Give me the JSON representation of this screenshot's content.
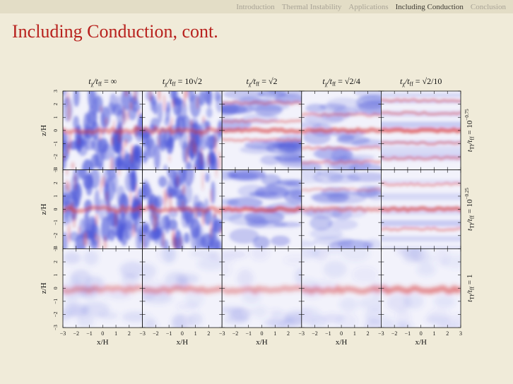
{
  "nav": {
    "items": [
      "Introduction",
      "Thermal Instability",
      "Applications",
      "Including Conduction",
      "Conclusion"
    ],
    "active_index": 3
  },
  "slide": {
    "title": "Including Conduction, cont."
  },
  "figure": {
    "column_titles": [
      {
        "lhs": "t",
        "lhs_sub": "χ",
        "rhs": "/t",
        "rhs_sub": "ff",
        "eq": " = ∞"
      },
      {
        "lhs": "t",
        "lhs_sub": "χ",
        "rhs": "/t",
        "rhs_sub": "ff",
        "eq": " = 10√2"
      },
      {
        "lhs": "t",
        "lhs_sub": "χ",
        "rhs": "/t",
        "rhs_sub": "ff",
        "eq": " = √2"
      },
      {
        "lhs": "t",
        "lhs_sub": "χ",
        "rhs": "/t",
        "rhs_sub": "ff",
        "eq": " = √2/4"
      },
      {
        "lhs": "t",
        "lhs_sub": "χ",
        "rhs": "/t",
        "rhs_sub": "ff",
        "eq": " = √2/10"
      }
    ],
    "row_titles": [
      {
        "lhs": "t",
        "lhs_sub": "TI",
        "rhs": "/t",
        "rhs_sub": "ff",
        "eq": " = 10",
        "sup": "−0.75"
      },
      {
        "lhs": "t",
        "lhs_sub": "TI",
        "rhs": "/t",
        "rhs_sub": "ff",
        "eq": " = 10",
        "sup": "−0.25"
      },
      {
        "lhs": "t",
        "lhs_sub": "TI",
        "rhs": "/t",
        "rhs_sub": "ff",
        "eq": " = 1",
        "sup": ""
      }
    ],
    "y_axis_label": "z/H",
    "x_axis_label": "x/H",
    "x_ticks": [
      "−3",
      "−2",
      "−1",
      "0",
      "1",
      "2"
    ],
    "x_ticks_last": "3",
    "y_ticks": [
      "3",
      "2",
      "1",
      "0",
      "−1",
      "−2",
      "−3"
    ],
    "colors": {
      "cold_red": "#d83a3a",
      "hot_blue": "#4a55d8",
      "mid": "#f2f2fb"
    },
    "panels": [
      [
        {
          "blue": 0.85,
          "red": 0.55,
          "style": "turbulent",
          "bands": [
            0.5
          ]
        },
        {
          "blue": 0.8,
          "red": 0.55,
          "style": "turbulent",
          "bands": [
            0.5
          ]
        },
        {
          "blue": 0.6,
          "red": 0.7,
          "style": "layered",
          "bands": [
            0.5,
            0.38,
            0.62,
            0.15
          ]
        },
        {
          "blue": 0.5,
          "red": 0.7,
          "style": "layered",
          "bands": [
            0.5,
            0.3,
            0.72,
            0.9
          ]
        },
        {
          "blue": 0.45,
          "red": 0.8,
          "style": "striped",
          "bands": [
            0.5,
            0.28,
            0.66,
            0.12,
            0.85
          ]
        }
      ],
      [
        {
          "blue": 0.8,
          "red": 0.55,
          "style": "turbulent",
          "bands": [
            0.5
          ]
        },
        {
          "blue": 0.75,
          "red": 0.55,
          "style": "turbulent",
          "bands": [
            0.5
          ]
        },
        {
          "blue": 0.6,
          "red": 0.75,
          "style": "layered",
          "bands": [
            0.5
          ]
        },
        {
          "blue": 0.4,
          "red": 0.5,
          "style": "layered",
          "bands": [
            0.5,
            0.25
          ]
        },
        {
          "blue": 0.3,
          "red": 0.7,
          "style": "striped",
          "bands": [
            0.5,
            0.18,
            0.75
          ]
        }
      ],
      [
        {
          "blue": 0.35,
          "red": 0.6,
          "style": "calm",
          "bands": [
            0.52
          ]
        },
        {
          "blue": 0.3,
          "red": 0.65,
          "style": "calm",
          "bands": [
            0.52
          ]
        },
        {
          "blue": 0.3,
          "red": 0.6,
          "style": "calm",
          "bands": [
            0.52
          ]
        },
        {
          "blue": 0.25,
          "red": 0.7,
          "style": "calm",
          "bands": [
            0.52
          ]
        },
        {
          "blue": 0.25,
          "red": 0.85,
          "style": "calm",
          "bands": [
            0.52
          ]
        }
      ]
    ]
  }
}
